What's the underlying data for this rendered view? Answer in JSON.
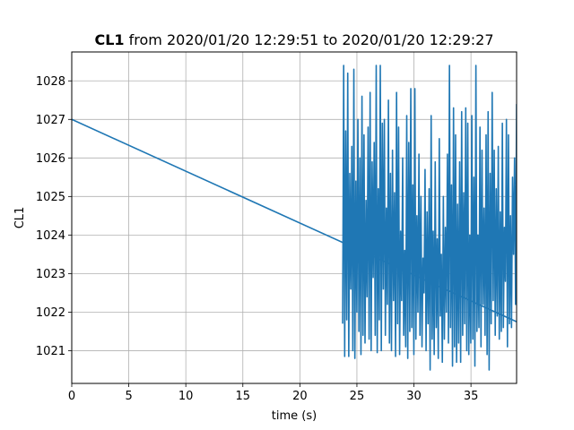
{
  "chart_data": {
    "type": "line",
    "title_bold": "CL1",
    "title_rest": " from 2020/01/20 12:29:51 to 2020/01/20 12:29:27",
    "xlabel": "time (s)",
    "ylabel": "CL1",
    "xlim": [
      0,
      39.0
    ],
    "ylim": [
      1020.15,
      1028.75
    ],
    "xticks": [
      0,
      5,
      10,
      15,
      20,
      25,
      30,
      35
    ],
    "yticks": [
      1021,
      1022,
      1023,
      1024,
      1025,
      1026,
      1027,
      1028
    ],
    "grid": true,
    "line_color": "#1f77b4",
    "series": [
      {
        "x": [
          0,
          23.8
        ],
        "y": [
          1027.0,
          1023.8
        ]
      },
      {
        "x": [
          23.8,
          39.0
        ],
        "y": [
          1023.8,
          1021.75
        ]
      }
    ],
    "noise_series": {
      "x_start": 23.75,
      "x_end": 39.0,
      "y": [
        1021.7,
        1028.4,
        1020.85,
        1026.7,
        1021.8,
        1028.2,
        1020.85,
        1025.6,
        1022.6,
        1026.3,
        1021.0,
        1028.3,
        1020.8,
        1025.4,
        1022.0,
        1027.0,
        1021.5,
        1026.0,
        1020.9,
        1027.6,
        1021.4,
        1026.6,
        1021.2,
        1024.9,
        1022.4,
        1026.8,
        1021.3,
        1027.7,
        1021.0,
        1025.9,
        1022.9,
        1026.4,
        1021.4,
        1028.4,
        1020.95,
        1025.2,
        1021.8,
        1028.4,
        1021.0,
        1026.9,
        1022.6,
        1027.0,
        1021.4,
        1024.7,
        1022.2,
        1027.5,
        1021.2,
        1025.6,
        1021.0,
        1026.2,
        1022.3,
        1025.1,
        1020.85,
        1027.7,
        1021.7,
        1026.8,
        1020.9,
        1024.1,
        1022.3,
        1026.0,
        1021.4,
        1023.6,
        1021.1,
        1027.1,
        1020.8,
        1026.4,
        1021.5,
        1027.8,
        1021.6,
        1025.3,
        1020.9,
        1027.8,
        1021.3,
        1024.5,
        1022.0,
        1026.1,
        1021.4,
        1025.0,
        1021.1,
        1023.4,
        1022.5,
        1025.7,
        1021.0,
        1024.6,
        1021.7,
        1025.2,
        1020.5,
        1027.1,
        1021.3,
        1024.1,
        1020.9,
        1025.9,
        1021.6,
        1023.9,
        1020.8,
        1026.5,
        1021.9,
        1023.5,
        1020.7,
        1025.0,
        1021.3,
        1024.2,
        1022.0,
        1026.1,
        1021.2,
        1028.4,
        1021.6,
        1025.3,
        1020.6,
        1027.3,
        1021.1,
        1026.6,
        1020.7,
        1024.8,
        1021.2,
        1025.9,
        1020.7,
        1027.2,
        1021.4,
        1025.1,
        1021.7,
        1027.3,
        1021.0,
        1026.9,
        1020.9,
        1024.0,
        1021.2,
        1027.1,
        1021.3,
        1025.5,
        1020.6,
        1028.4,
        1021.5,
        1024.0,
        1021.6,
        1026.8,
        1021.1,
        1026.2,
        1022.2,
        1024.7,
        1021.4,
        1026.6,
        1020.9,
        1027.2,
        1020.5,
        1025.6,
        1021.7,
        1027.7,
        1022.3,
        1026.2,
        1021.4,
        1025.2,
        1021.9,
        1026.3,
        1021.3,
        1024.6,
        1021.5,
        1026.9,
        1021.6,
        1024.2,
        1022.8,
        1027.0,
        1021.1,
        1026.6,
        1021.7,
        1024.5,
        1021.6,
        1025.5,
        1023.5,
        1026.0,
        1022.2,
        1027.4
      ]
    }
  }
}
